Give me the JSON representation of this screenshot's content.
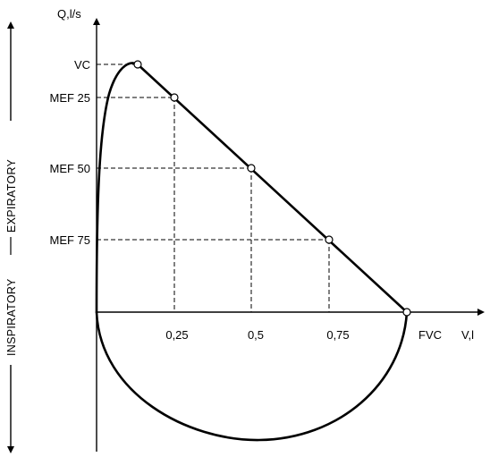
{
  "y_axis_label": "Q,l/s",
  "x_axis_label": "V,l",
  "side_labels": {
    "expiratory": "EXPIRATORY",
    "inspiratory": "INSPIRATORY"
  },
  "y_markers": [
    "VC",
    "MEF 25",
    "MEF 50",
    "MEF 75"
  ],
  "x_ticks": [
    "0,25",
    "0,5",
    "0,75"
  ],
  "fvc_label": "FVC"
}
